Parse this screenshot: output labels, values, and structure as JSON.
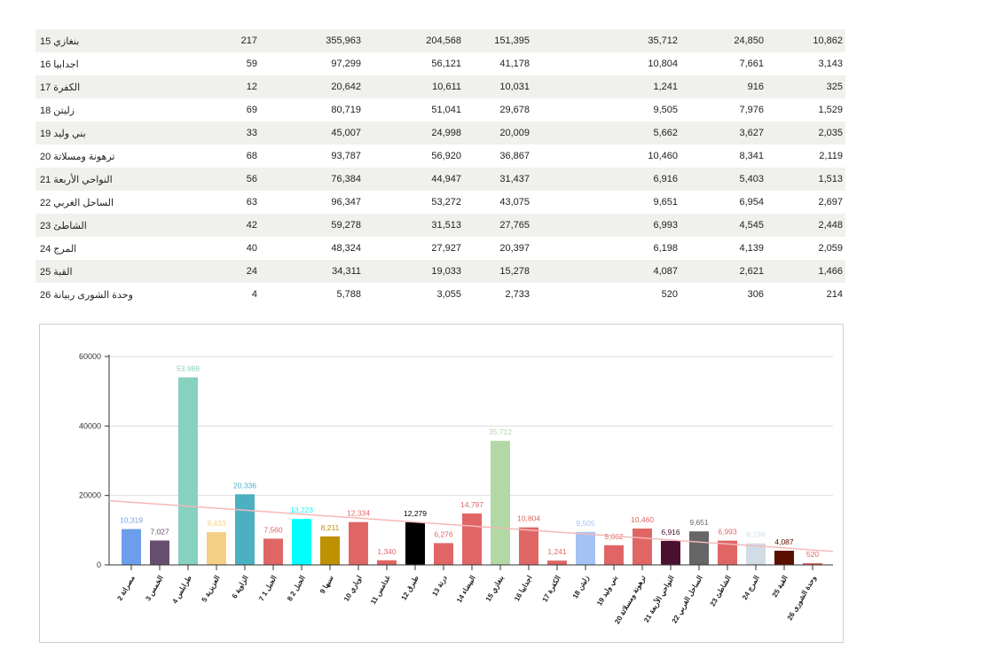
{
  "table": {
    "rows": [
      [
        "بنغازي 15",
        "217",
        "355,963",
        "204,568",
        "151,395",
        "35,712",
        "24,850",
        "10,862"
      ],
      [
        "اجدابيا 16",
        "59",
        "97,299",
        "56,121",
        "41,178",
        "10,804",
        "7,661",
        "3,143"
      ],
      [
        "الكفرة 17",
        "12",
        "20,642",
        "10,611",
        "10,031",
        "1,241",
        "916",
        "325"
      ],
      [
        "زليتن 18",
        "69",
        "80,719",
        "51,041",
        "29,678",
        "9,505",
        "7,976",
        "1,529"
      ],
      [
        "بني وليد 19",
        "33",
        "45,007",
        "24,998",
        "20,009",
        "5,662",
        "3,627",
        "2,035"
      ],
      [
        "ترهونة ومسلاتة 20",
        "68",
        "93,787",
        "56,920",
        "36,867",
        "10,460",
        "8,341",
        "2,119"
      ],
      [
        "النواحي الأربعة 21",
        "56",
        "76,384",
        "44,947",
        "31,437",
        "6,916",
        "5,403",
        "1,513"
      ],
      [
        "الساحل الغربي 22",
        "63",
        "96,347",
        "53,272",
        "43,075",
        "9,651",
        "6,954",
        "2,697"
      ],
      [
        "الشاطئ 23",
        "42",
        "59,278",
        "31,513",
        "27,765",
        "6,993",
        "4,545",
        "2,448"
      ],
      [
        "المرج 24",
        "40",
        "48,324",
        "27,927",
        "20,397",
        "6,198",
        "4,139",
        "2,059"
      ],
      [
        "القبة 25",
        "24",
        "34,311",
        "19,033",
        "15,278",
        "4,087",
        "2,621",
        "1,466"
      ],
      [
        "وحدة الشورى ربيانة 26",
        "4",
        "5,788",
        "3,055",
        "2,733",
        "520",
        "306",
        "214"
      ]
    ]
  },
  "chart_data": {
    "type": "bar",
    "ylim": [
      0,
      60000
    ],
    "yticks": [
      "0",
      "20000",
      "40000",
      "60000"
    ],
    "categories": [
      "2 مصراتة",
      "3 الخمس",
      "4 طرابلس",
      "5 العزيزية",
      "6 الزاوية",
      "7 الجبل 1",
      "8 الجبل 2",
      "9 سبها",
      "10 اوباري",
      "11 غدامس",
      "12 طبرق",
      "13 درنة",
      "14 البيضاء",
      "15 بنغازي",
      "16 اجدابيا",
      "17 الكفرة",
      "18 زليتن",
      "19 بني وليد",
      "20 ترهونة ومسلاتة",
      "21 النواحي الأربعة",
      "22 الساحل الغربي",
      "23 الشاطئ",
      "24 المرج",
      "25 القبة",
      "26 وحدة الشورى"
    ],
    "values": [
      10319,
      7027,
      53988,
      9433,
      20336,
      7560,
      13223,
      8211,
      12334,
      1340,
      12279,
      6276,
      14797,
      35712,
      10804,
      1241,
      9505,
      5662,
      10460,
      6916,
      9651,
      6993,
      6198,
      4087,
      520
    ],
    "labels": [
      "10,319",
      "7,027",
      "53,988",
      "9,433",
      "20,336",
      "7,560",
      "13,223",
      "8,211",
      "12,334",
      "1,340",
      "12,279",
      "6,276",
      "14,797",
      "35,712",
      "10,804",
      "1,241",
      "9,505",
      "5,662",
      "10,460",
      "6,916",
      "9,651",
      "6,993",
      "6,198",
      "4,087",
      "520"
    ],
    "colors": [
      "#6d9eeb",
      "#674e6f",
      "#86d1bf",
      "#f4cf86",
      "#4bb0c0",
      "#e06666",
      "#00ffff",
      "#bf9000",
      "#e06666",
      "#e06666",
      "#000000",
      "#e06666",
      "#e06666",
      "#b2d8a6",
      "#e06666",
      "#e06666",
      "#a4c2f4",
      "#e06666",
      "#e06666",
      "#4c1130",
      "#666666",
      "#e06666",
      "#d0dde6",
      "#5b0f00",
      "#e06666"
    ],
    "trendline": {
      "start": 18500,
      "end": 3900,
      "color": "#f4b8b8"
    }
  }
}
